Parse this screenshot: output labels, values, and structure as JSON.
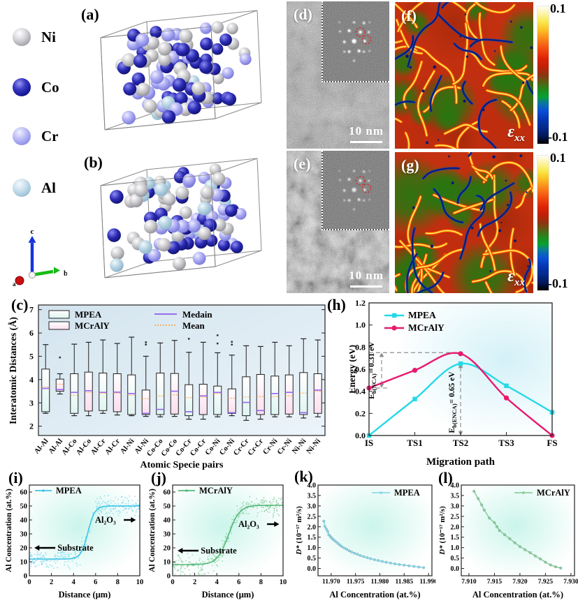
{
  "atom_legend": {
    "items": [
      {
        "label": "Ni",
        "color": "#b2b2b8"
      },
      {
        "label": "Co",
        "color": "#1b1b9e"
      },
      {
        "label": "Cr",
        "color": "#9d9df0"
      },
      {
        "label": "Al",
        "color": "#a9cbde"
      }
    ],
    "axis_triad": {
      "a": "a",
      "b": "b",
      "c": "c"
    }
  },
  "panels": {
    "a": "(a)",
    "b": "(b)",
    "c": "(c)",
    "d": "(d)",
    "e": "(e)",
    "f": "(f)",
    "g": "(g)",
    "h": "(h)",
    "i": "(i)",
    "j": "(j)",
    "k": "(k)",
    "l": "(l)"
  },
  "tem": {
    "scale_bar": "10 nm"
  },
  "strain_map": {
    "label_main": "ε",
    "label_sub": "xx",
    "cbar_top": "0.1",
    "cbar_bottom": "-0.1"
  },
  "chart_data": [
    {
      "id": "c",
      "type": "box",
      "ylabel": "Interatomic Distances (Å)",
      "xlabel": "Atomic Specie pairs",
      "ylim": [
        1.6,
        7.2
      ],
      "yticks": [
        2,
        3,
        4,
        5,
        6,
        7
      ],
      "legend": {
        "series1": "MPEA",
        "series2": "MCrAlY",
        "median": "Medain",
        "mean": "Mean"
      },
      "colors": {
        "series1_fill": "#dff5f1",
        "series2_fill": "#fbdeee",
        "median": "#9a6cf0",
        "mean": "#ff9d3c"
      },
      "categories": [
        "Al-Al",
        "Al-Al",
        "Al-Co",
        "Al-Co",
        "Al-Cr",
        "Al-Cr",
        "Al-Ni",
        "Al-Ni",
        "Co-Co",
        "Co-Co",
        "Co-Cr",
        "Co-Cr",
        "Co-Ni",
        "Co-Ni",
        "Cr-Cr",
        "Cr-Cr",
        "Cr-Ni",
        "Cr-Ni",
        "Ni-Ni",
        "Ni-Ni"
      ],
      "boxes": [
        {
          "series": "MPEA",
          "lo": 2.55,
          "q1": 2.62,
          "med": 3.62,
          "mean": 3.68,
          "q3": 4.45,
          "hi": 5.5,
          "out": []
        },
        {
          "series": "MCrAlY",
          "lo": 3.38,
          "q1": 3.5,
          "med": 3.57,
          "mean": 3.8,
          "q3": 4.02,
          "hi": 4.25,
          "out": [
            4.95
          ]
        },
        {
          "series": "MPEA",
          "lo": 2.45,
          "q1": 2.55,
          "med": 3.45,
          "mean": 3.33,
          "q3": 4.25,
          "hi": 5.52,
          "out": []
        },
        {
          "series": "MCrAlY",
          "lo": 2.45,
          "q1": 2.65,
          "med": 3.52,
          "mean": 3.45,
          "q3": 4.32,
          "hi": 5.6,
          "out": []
        },
        {
          "series": "MPEA",
          "lo": 2.55,
          "q1": 2.67,
          "med": 3.45,
          "mean": 3.42,
          "q3": 4.28,
          "hi": 5.7,
          "out": []
        },
        {
          "series": "MCrAlY",
          "lo": 2.48,
          "q1": 2.62,
          "med": 3.46,
          "mean": 3.42,
          "q3": 4.25,
          "hi": 5.55,
          "out": []
        },
        {
          "series": "MPEA",
          "lo": 2.45,
          "q1": 2.5,
          "med": 3.4,
          "mean": 3.33,
          "q3": 4.2,
          "hi": 5.82,
          "out": []
        },
        {
          "series": "MCrAlY",
          "lo": 2.42,
          "q1": 2.5,
          "med": 2.55,
          "mean": 3.18,
          "q3": 3.55,
          "hi": 5.0,
          "out": [
            5.5,
            5.6
          ]
        },
        {
          "series": "MPEA",
          "lo": 2.4,
          "q1": 2.5,
          "med": 2.72,
          "mean": 3.3,
          "q3": 4.28,
          "hi": 5.57,
          "out": []
        },
        {
          "series": "MCrAlY",
          "lo": 2.42,
          "q1": 2.52,
          "med": 3.5,
          "mean": 3.35,
          "q3": 4.26,
          "hi": 5.68,
          "out": []
        },
        {
          "series": "MPEA",
          "lo": 2.3,
          "q1": 2.45,
          "med": 2.62,
          "mean": 3.22,
          "q3": 3.78,
          "hi": 5.17,
          "out": [
            5.75
          ]
        },
        {
          "series": "MCrAlY",
          "lo": 2.3,
          "q1": 2.5,
          "med": 3.3,
          "mean": 3.25,
          "q3": 3.8,
          "hi": 5.6,
          "out": []
        },
        {
          "series": "MPEA",
          "lo": 2.4,
          "q1": 2.5,
          "med": 3.45,
          "mean": 3.4,
          "q3": 3.72,
          "hi": 5.15,
          "out": [
            5.55,
            5.9
          ]
        },
        {
          "series": "MCrAlY",
          "lo": 2.45,
          "q1": 2.55,
          "med": 2.58,
          "mean": 3.2,
          "q3": 3.6,
          "hi": 5.05,
          "out": [
            5.5,
            5.62
          ]
        },
        {
          "series": "MPEA",
          "lo": 2.25,
          "q1": 2.45,
          "med": 3.02,
          "mean": 3.25,
          "q3": 4.12,
          "hi": 5.45,
          "out": []
        },
        {
          "series": "MCrAlY",
          "lo": 2.3,
          "q1": 2.5,
          "med": 2.67,
          "mean": 3.27,
          "q3": 4.22,
          "hi": 5.42,
          "out": []
        },
        {
          "series": "MPEA",
          "lo": 2.4,
          "q1": 2.5,
          "med": 3.4,
          "mean": 3.27,
          "q3": 4.15,
          "hi": 5.6,
          "out": []
        },
        {
          "series": "MCrAlY",
          "lo": 2.4,
          "q1": 2.52,
          "med": 3.45,
          "mean": 3.3,
          "q3": 4.2,
          "hi": 5.45,
          "out": []
        },
        {
          "series": "MPEA",
          "lo": 2.35,
          "q1": 2.5,
          "med": 2.58,
          "mean": 3.42,
          "q3": 4.3,
          "hi": 5.75,
          "out": []
        },
        {
          "series": "MCrAlY",
          "lo": 2.4,
          "q1": 2.55,
          "med": 3.55,
          "mean": 3.5,
          "q3": 4.25,
          "hi": 5.7,
          "out": []
        }
      ]
    },
    {
      "id": "h",
      "type": "line",
      "ylabel": "Energy (eV)",
      "xlabel": "Migration path",
      "ylim": [
        0,
        1.2
      ],
      "ytick_labels": [
        "0.0",
        "0.2",
        "0.4",
        "0.6",
        "0.8",
        "1.0",
        "1.2"
      ],
      "categories": [
        "IS",
        "TS1",
        "TS2",
        "TS3",
        "FS"
      ],
      "series": [
        {
          "name": "MPEA",
          "color": "#23d9e8",
          "marker": "square",
          "values": [
            0.0,
            0.33,
            0.65,
            0.45,
            0.21
          ]
        },
        {
          "name": "MCrAlY",
          "color": "#e8196e",
          "marker": "circle",
          "values": [
            0.43,
            0.59,
            0.74,
            0.34,
            0.0
          ]
        }
      ],
      "annotations": [
        {
          "pre": "E",
          "sub": "b(NCA)",
          "post": "= 0.31 eV"
        },
        {
          "pre": "E",
          "sub": "b(ENCA)",
          "post": "= 0.65 eV"
        }
      ],
      "dashed_levels": [
        0.43,
        0.75
      ],
      "barrier_x": "TS2"
    },
    {
      "id": "i",
      "type": "profile",
      "legend": "MPEA",
      "color": "#3fc3e6",
      "scatter_color": "#86dcf2",
      "xlabel": "Distance (μm)",
      "ylabel": "Al Concentration (at.%)",
      "xlim": [
        0,
        10
      ],
      "xticks": [
        0,
        2,
        4,
        6,
        8,
        10
      ],
      "ylim": [
        0,
        65
      ],
      "yticks": [
        0,
        10,
        20,
        30,
        40,
        50,
        60
      ],
      "sigmoid": {
        "base": 12,
        "amplitude": 38,
        "center": 5.3,
        "rate": 3.2
      },
      "scatter_sd": 3.3,
      "scatter_n": 300,
      "annotations": {
        "left": "Substrate",
        "left_y": 20,
        "right": "Al₂O₃",
        "right_y": 40
      }
    },
    {
      "id": "j",
      "type": "profile",
      "legend": "MCrAlY",
      "color": "#55b77a",
      "scatter_color": "#8fd4a8",
      "xlabel": "Distance (μm)",
      "ylabel": "Al Concentration (at.%)",
      "xlim": [
        0,
        10
      ],
      "xticks": [
        0,
        2,
        4,
        6,
        8,
        10
      ],
      "ylim": [
        0,
        65
      ],
      "yticks": [
        0,
        10,
        20,
        30,
        40,
        50,
        60
      ],
      "sigmoid": {
        "base": 8,
        "amplitude": 42.5,
        "center": 5.05,
        "rate": 2.0
      },
      "scatter_sd": 3.6,
      "scatter_n": 300,
      "annotations": {
        "left": "Substrate",
        "left_y": 18,
        "right": "Al₂O₃",
        "right_y": 37
      }
    },
    {
      "id": "k",
      "type": "decay",
      "legend": "MPEA",
      "color": "#8fd9ea",
      "xlabel": "Al Concentration (at.%)",
      "ylabel_prefix": "D*",
      "ylabel_rest": " (10⁻¹⁷ m²/s)",
      "xlim": [
        11.9673,
        11.9907
      ],
      "xtick_labels": [
        "11.970",
        "11.975",
        "11.980",
        "11.985",
        "11.990"
      ],
      "xtick_values": [
        11.97,
        11.975,
        11.98,
        11.985,
        11.99
      ],
      "ylim": [
        -0.35,
        4.0
      ],
      "ytick_labels": [
        "0.0",
        "0.5",
        "1.0",
        "1.5",
        "2.0",
        "2.5",
        "3.0",
        "3.5",
        "4.0"
      ],
      "ytick_values": [
        0,
        0.5,
        1.0,
        1.5,
        2.0,
        2.5,
        3.0,
        3.5,
        4.0
      ],
      "points": [
        [
          11.9685,
          2.27
        ],
        [
          11.9687,
          2.02
        ],
        [
          11.969,
          1.9
        ],
        [
          11.9693,
          1.78
        ],
        [
          11.9695,
          1.62
        ],
        [
          11.9698,
          1.55
        ],
        [
          11.97,
          1.48
        ],
        [
          11.9703,
          1.42
        ],
        [
          11.9706,
          1.35
        ],
        [
          11.971,
          1.28
        ],
        [
          11.9714,
          1.2
        ],
        [
          11.9718,
          1.12
        ],
        [
          11.9722,
          1.05
        ],
        [
          11.9727,
          0.98
        ],
        [
          11.9732,
          0.92
        ],
        [
          11.9737,
          0.85
        ],
        [
          11.9742,
          0.79
        ],
        [
          11.9748,
          0.73
        ],
        [
          11.9754,
          0.68
        ],
        [
          11.976,
          0.62
        ],
        [
          11.9767,
          0.57
        ],
        [
          11.9774,
          0.52
        ],
        [
          11.9781,
          0.47
        ],
        [
          11.9789,
          0.42
        ],
        [
          11.9797,
          0.38
        ],
        [
          11.9805,
          0.34
        ],
        [
          11.9813,
          0.3
        ],
        [
          11.9822,
          0.26
        ],
        [
          11.9831,
          0.22
        ],
        [
          11.984,
          0.19
        ],
        [
          11.985,
          0.16
        ],
        [
          11.986,
          0.13
        ],
        [
          11.987,
          0.1
        ],
        [
          11.988,
          0.07
        ],
        [
          11.989,
          0.04
        ]
      ]
    },
    {
      "id": "l",
      "type": "decay",
      "legend": "MCrAlY",
      "color": "#8ecfa2",
      "xlabel": "Al Concentration (at.%)",
      "ylabel_prefix": "D*",
      "ylabel_rest": " (10⁻¹⁷ m²/s)",
      "xlim": [
        7.9085,
        7.9307
      ],
      "xtick_labels": [
        "7.910",
        "7.915",
        "7.920",
        "7.925",
        "7.930"
      ],
      "xtick_values": [
        7.91,
        7.915,
        7.92,
        7.925,
        7.93
      ],
      "ylim": [
        -0.35,
        4.0
      ],
      "ytick_labels": [
        "0.0",
        "0.5",
        "1.0",
        "1.5",
        "2.0",
        "2.5",
        "3.0",
        "3.5",
        "4.0"
      ],
      "ytick_values": [
        0,
        0.5,
        1.0,
        1.5,
        2.0,
        2.5,
        3.0,
        3.5,
        4.0
      ],
      "points": [
        [
          7.911,
          3.7
        ],
        [
          7.9118,
          3.35
        ],
        [
          7.9125,
          3.05
        ],
        [
          7.913,
          2.8
        ],
        [
          7.914,
          2.42
        ],
        [
          7.915,
          2.2
        ],
        [
          7.9155,
          2.0
        ],
        [
          7.916,
          1.82
        ],
        [
          7.917,
          1.62
        ],
        [
          7.918,
          1.43
        ],
        [
          7.919,
          1.23
        ],
        [
          7.92,
          1.05
        ],
        [
          7.921,
          0.9
        ],
        [
          7.922,
          0.76
        ],
        [
          7.923,
          0.6
        ],
        [
          7.924,
          0.46
        ],
        [
          7.925,
          0.3
        ],
        [
          7.926,
          0.17
        ],
        [
          7.927,
          0.08
        ],
        [
          7.928,
          0.02
        ]
      ]
    }
  ]
}
